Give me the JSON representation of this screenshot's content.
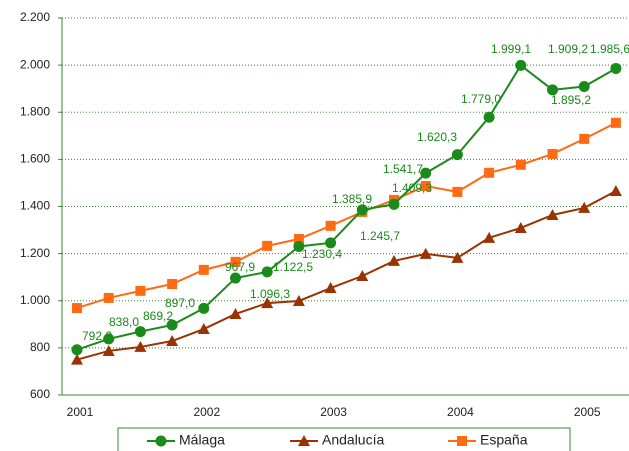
{
  "chart_data": {
    "type": "line",
    "categories": [
      "2001",
      null,
      null,
      null,
      "2002",
      null,
      null,
      null,
      "2003",
      null,
      null,
      null,
      "2004",
      null,
      null,
      null,
      "2005",
      null
    ],
    "series": [
      {
        "name": "Málaga",
        "color": "#1a8a1a",
        "values": [
          792.2,
          838.0,
          869.2,
          897.0,
          967.9,
          1096.3,
          1122.5,
          1230.4,
          1245.7,
          1385.9,
          1409.3,
          1541.7,
          1620.3,
          1779.0,
          1999.1,
          1895.2,
          1909.2,
          1985.6
        ],
        "value_labels": [
          "792,2",
          "838,0",
          "869,2",
          "897,0",
          "967,9",
          "1.096,3",
          "1.122,5",
          "1.230,4",
          "1.245,7",
          "1.385,9",
          "1.409,3",
          "1.541,7",
          "1.620,3",
          "1.779,0",
          "1.999,1",
          "1.895,2",
          "1.909,2",
          "1.985,6"
        ]
      },
      {
        "name": "Andalucía",
        "color": "#993300",
        "values": [
          750,
          787,
          804,
          829,
          880,
          944,
          990,
          999,
          1054,
          1105,
          1169,
          1199,
          1182,
          1267,
          1309,
          1364,
          1394,
          1466
        ]
      },
      {
        "name": "España",
        "color": "#ff6a13",
        "values": [
          969,
          1012,
          1042,
          1071,
          1131,
          1165,
          1233,
          1262,
          1318,
          1377,
          1428,
          1487,
          1462,
          1543,
          1577,
          1623,
          1687,
          1755
        ]
      }
    ],
    "ylim": [
      600,
      2200
    ],
    "yticks": [
      {
        "value": 600,
        "label": "600"
      },
      {
        "value": 800,
        "label": "800"
      },
      {
        "value": 1000,
        "label": "1.000"
      },
      {
        "value": 1200,
        "label": "1.200"
      },
      {
        "value": 1400,
        "label": "1.400"
      },
      {
        "value": 1600,
        "label": "1.600"
      },
      {
        "value": 1800,
        "label": "1.800"
      },
      {
        "value": 2000,
        "label": "2.000"
      },
      {
        "value": 2200,
        "label": "2.200"
      }
    ],
    "grid": true,
    "legend": "bottom"
  }
}
